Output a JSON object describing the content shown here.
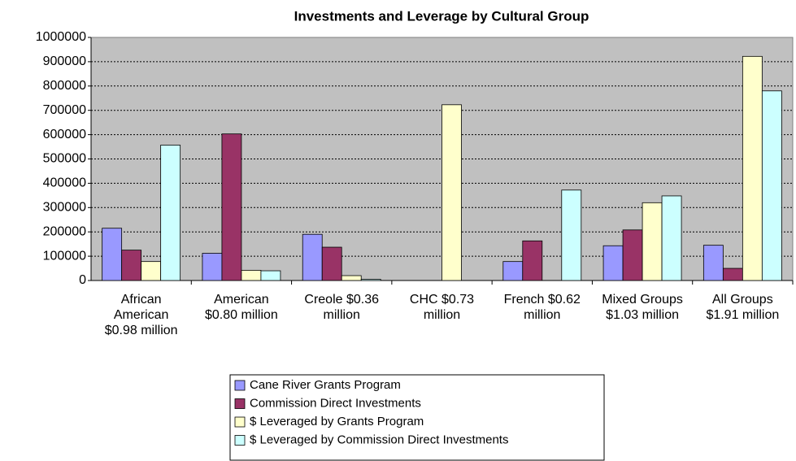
{
  "chart_data": {
    "type": "bar",
    "title": "Investments and Leverage by Cultural Group",
    "categories": [
      "African American $0.98 million",
      "American $0.80 million",
      "Creole $0.36 million",
      "CHC $0.73 million",
      "French $0.62 million",
      "Mixed Groups $1.03 million",
      "All Groups $1.91 million"
    ],
    "series": [
      {
        "name": "Cane River Grants Program",
        "color": "#9999ff",
        "values": [
          215000,
          112000,
          190000,
          0,
          78000,
          143000,
          145000
        ]
      },
      {
        "name": "Commission Direct Investments",
        "color": "#993366",
        "values": [
          125000,
          603000,
          137000,
          0,
          163000,
          208000,
          50000
        ]
      },
      {
        "name": "$ Leveraged by Grants Program",
        "color": "#ffffcc",
        "values": [
          78000,
          42000,
          20000,
          723000,
          0,
          320000,
          922000
        ]
      },
      {
        "name": "$ Leveraged by Commission Direct Investments",
        "color": "#ccffff",
        "values": [
          557000,
          40000,
          5000,
          0,
          372000,
          348000,
          780000
        ]
      }
    ],
    "ylim": [
      0,
      1000000
    ],
    "yticks": [
      0,
      100000,
      200000,
      300000,
      400000,
      500000,
      600000,
      700000,
      800000,
      900000,
      1000000
    ],
    "grid": true,
    "legend": "bottom"
  }
}
